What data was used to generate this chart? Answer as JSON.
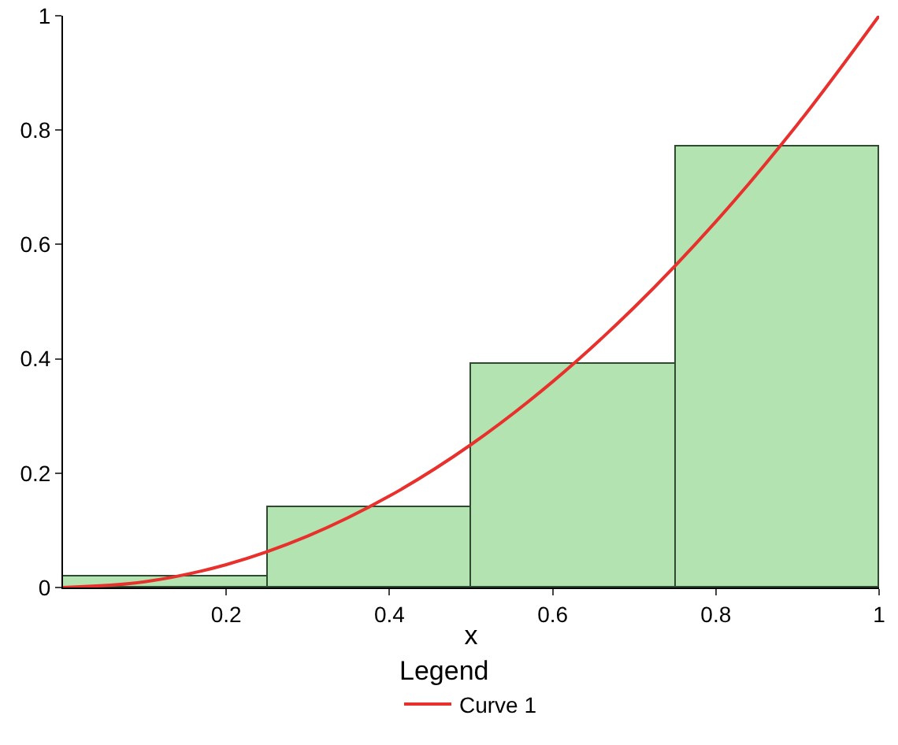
{
  "chart_data": {
    "type": "histogram",
    "xlabel": "x",
    "bins": [
      0,
      0.25,
      0.5,
      0.75,
      1
    ],
    "values": [
      0.02,
      0.14,
      0.39,
      0.77
    ],
    "color": "#b3e3b0",
    "series": [
      {
        "type": "line",
        "name": "Curve 1",
        "color": "#e8302c",
        "x": [
          0,
          0.1,
          0.2,
          0.3,
          0.4,
          0.5,
          0.6,
          0.7,
          0.8,
          0.9,
          1
        ],
        "values": [
          0,
          0.01,
          0.04,
          0.09,
          0.16,
          0.25,
          0.36,
          0.49,
          0.64,
          0.81,
          1
        ]
      }
    ],
    "xlim": [
      0,
      1
    ],
    "xticks": [
      0.2,
      0.4,
      0.6,
      0.8,
      1
    ],
    "ylim": [
      0,
      1
    ],
    "yticks": [
      0,
      0.2,
      0.4,
      0.6,
      0.8,
      1
    ],
    "legend": "bottom",
    "legend_title": "Legend",
    "grid": false,
    "line_style": "solid",
    "marker": "none"
  }
}
